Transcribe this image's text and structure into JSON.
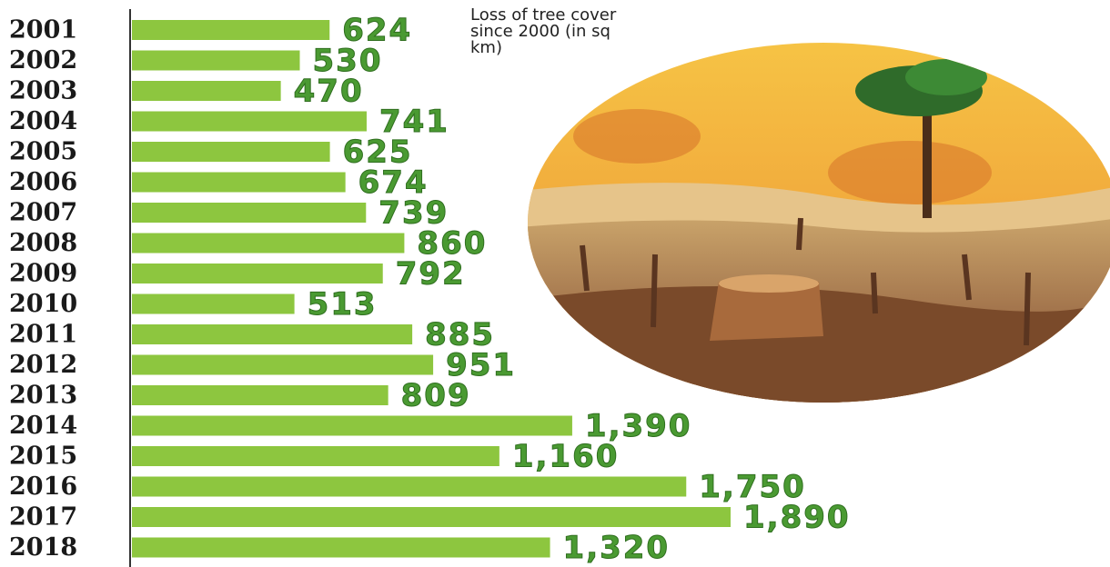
{
  "chart_data": {
    "type": "bar",
    "orientation": "horizontal",
    "title": "Loss of tree cover since 2000 (in sq km)",
    "categories": [
      "2001",
      "2002",
      "2003",
      "2004",
      "2005",
      "2006",
      "2007",
      "2008",
      "2009",
      "2010",
      "2011",
      "2012",
      "2013",
      "2014",
      "2015",
      "2016",
      "2017",
      "2018"
    ],
    "values": [
      624,
      530,
      470,
      741,
      625,
      674,
      739,
      860,
      792,
      513,
      885,
      951,
      809,
      1390,
      1160,
      1750,
      1890,
      1320
    ],
    "value_labels": [
      "624",
      "530",
      "470",
      "741",
      "625",
      "674",
      "739",
      "860",
      "792",
      "513",
      "885",
      "951",
      "809",
      "1,390",
      "1,160",
      "1,750",
      "1,890",
      "1,320"
    ],
    "color": "#8dc63f"
  }
}
